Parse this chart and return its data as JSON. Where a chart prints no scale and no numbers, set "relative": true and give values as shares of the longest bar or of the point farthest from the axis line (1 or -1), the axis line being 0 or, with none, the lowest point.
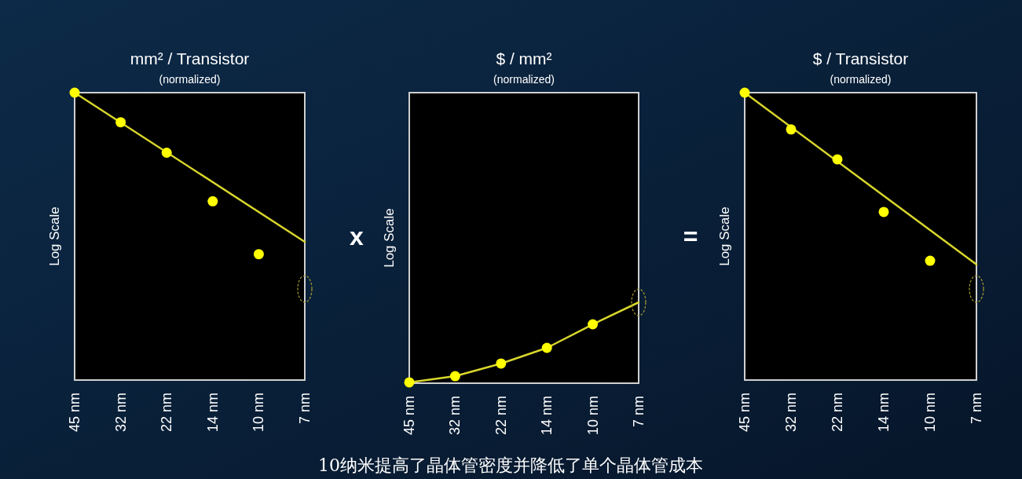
{
  "chart_data": [
    {
      "type": "line",
      "title": "mm² / Transistor",
      "subtitle": "(normalized)",
      "ylabel": "Log Scale",
      "relative": true,
      "grid": false,
      "categories": [
        "45 nm",
        "32 nm",
        "22 nm",
        "14 nm",
        "10 nm",
        "7 nm"
      ],
      "annotations": [
        "x"
      ],
      "series": [
        {
          "type": "line",
          "color": "#d8d62c",
          "x": [
            "45 nm",
            "7 nm"
          ],
          "values": [
            1,
            0.481
          ]
        },
        {
          "type": "scatter",
          "color": "#ffff00",
          "marker": "circle",
          "values": [
            1,
            0.897,
            0.791,
            0.622,
            0.438,
            null
          ]
        }
      ]
    },
    {
      "type": "line",
      "title": "$ / mm²",
      "subtitle": "(normalized)",
      "ylabel": "Log Scale",
      "relative": true,
      "grid": false,
      "categories": [
        "45 nm",
        "32 nm",
        "22 nm",
        "14 nm",
        "10 nm",
        "7 nm"
      ],
      "annotations": [
        "=",
        "10纳米提高了晶体管密度并降低了单个晶体管成本"
      ],
      "series": [
        {
          "type": "line",
          "color": "#d8d62c",
          "values": [
            0.01,
            0.087,
            0.243,
            0.437,
            0.728,
            1
          ]
        },
        {
          "type": "scatter",
          "color": "#ffff00",
          "marker": "circle",
          "values": [
            0.01,
            0.087,
            0.243,
            0.437,
            0.728,
            null
          ]
        }
      ]
    },
    {
      "type": "line",
      "title": "$ / Transistor",
      "subtitle": "(normalized)",
      "ylabel": "Log Scale",
      "relative": true,
      "grid": false,
      "categories": [
        "45 nm",
        "32 nm",
        "22 nm",
        "14 nm",
        "10 nm",
        "7 nm"
      ],
      "series": [
        {
          "type": "line",
          "color": "#d8d62c",
          "x": [
            "45 nm",
            "7 nm"
          ],
          "values": [
            1,
            0.402
          ]
        },
        {
          "type": "scatter",
          "color": "#ffff00",
          "marker": "circle",
          "values": [
            1,
            0.872,
            0.768,
            0.585,
            0.415,
            null
          ]
        }
      ]
    }
  ]
}
